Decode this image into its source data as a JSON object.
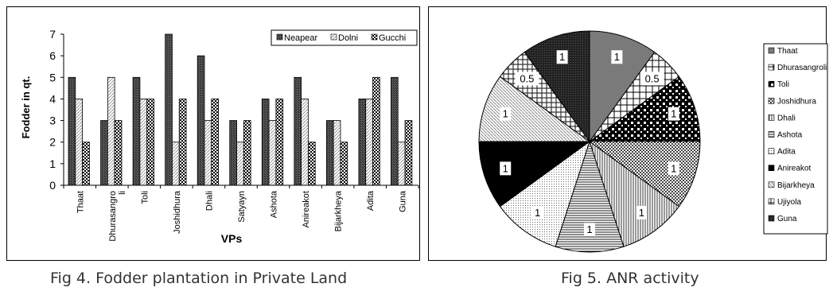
{
  "figures": {
    "left_caption": "Fig 4. Fodder plantation in Private Land",
    "right_caption": "Fig 5. ANR activity"
  },
  "chart_data": [
    {
      "type": "bar",
      "categories": [
        "Thaat",
        "Dhurasangroli",
        "Toli",
        "Joshidhura",
        "Dhali",
        "Satyayn",
        "Ashota",
        "Anireakot",
        "Bijarkheya",
        "Adita",
        "Guna"
      ],
      "category_labels": [
        [
          "Thaat"
        ],
        [
          "Dhurasangro",
          "li"
        ],
        [
          "Toli"
        ],
        [
          "Joshidhura"
        ],
        [
          "Dhali"
        ],
        [
          "Satyayn"
        ],
        [
          "Ashota"
        ],
        [
          "Anireakot"
        ],
        [
          "Bijarkheya"
        ],
        [
          "Adita"
        ],
        [
          "Guna"
        ]
      ],
      "series": [
        {
          "name": "Neapear",
          "values": [
            5,
            3,
            5,
            7,
            6,
            3,
            4,
            5,
            3,
            4,
            5
          ]
        },
        {
          "name": "Dolni",
          "values": [
            4,
            5,
            4,
            2,
            3,
            2,
            3,
            4,
            3,
            4,
            2
          ]
        },
        {
          "name": "Gucchi",
          "values": [
            2,
            3,
            4,
            4,
            4,
            3,
            4,
            2,
            2,
            5,
            3
          ]
        }
      ],
      "ylim": [
        0,
        7
      ],
      "yticks": [
        0,
        1,
        2,
        3,
        4,
        5,
        6,
        7
      ],
      "xlabel": "VPs",
      "ylabel": "Fodder in qt.",
      "legend": "top-right",
      "grid": false
    },
    {
      "type": "pie",
      "labels": [
        "Thaat",
        "Dhurasangroli",
        "Toli",
        "Joshidhura",
        "Dhali",
        "Ashota",
        "Adita",
        "Anireakot",
        "Bijarkheya",
        "Ujiyola",
        "Guna"
      ],
      "values": [
        1,
        0.5,
        1,
        1,
        1,
        1,
        1,
        1,
        1,
        0.5,
        1
      ],
      "data_labels": [
        "1",
        "0.5",
        "1",
        "1",
        "1",
        "1",
        "1",
        "1",
        "1",
        "0.5",
        "1"
      ],
      "legend": "right"
    }
  ]
}
